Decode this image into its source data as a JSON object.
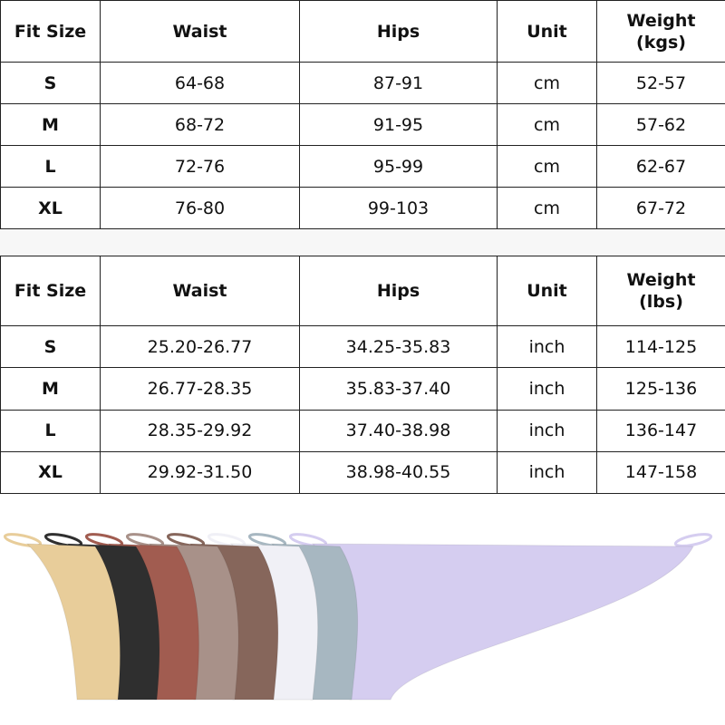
{
  "tables": [
    {
      "headers": [
        "Fit Size",
        "Waist",
        "Hips",
        "Unit",
        "Weight\n(kgs)"
      ],
      "rows": [
        [
          "S",
          "64-68",
          "87-91",
          "cm",
          "52-57"
        ],
        [
          "M",
          "68-72",
          "91-95",
          "cm",
          "57-62"
        ],
        [
          "L",
          "72-76",
          "95-99",
          "cm",
          "62-67"
        ],
        [
          "XL",
          "76-80",
          "99-103",
          "cm",
          "67-72"
        ]
      ]
    },
    {
      "headers": [
        "Fit Size",
        "Waist",
        "Hips",
        "Unit",
        "Weight\n(lbs)"
      ],
      "rows": [
        [
          "S",
          "25.20-26.77",
          "34.25-35.83",
          "inch",
          "114-125"
        ],
        [
          "M",
          "26.77-28.35",
          "35.83-37.40",
          "inch",
          "125-136"
        ],
        [
          "L",
          "28.35-29.92",
          "37.40-38.98",
          "inch",
          "136-147"
        ],
        [
          "XL",
          "29.92-31.50",
          "38.98-40.55",
          "inch",
          "147-158"
        ]
      ]
    }
  ],
  "product_colors": [
    "#e8cd9a",
    "#2f2f2f",
    "#a15c50",
    "#a89189",
    "#86665b",
    "#f0f0f6",
    "#a7b7c1",
    "#d5cdf0"
  ]
}
